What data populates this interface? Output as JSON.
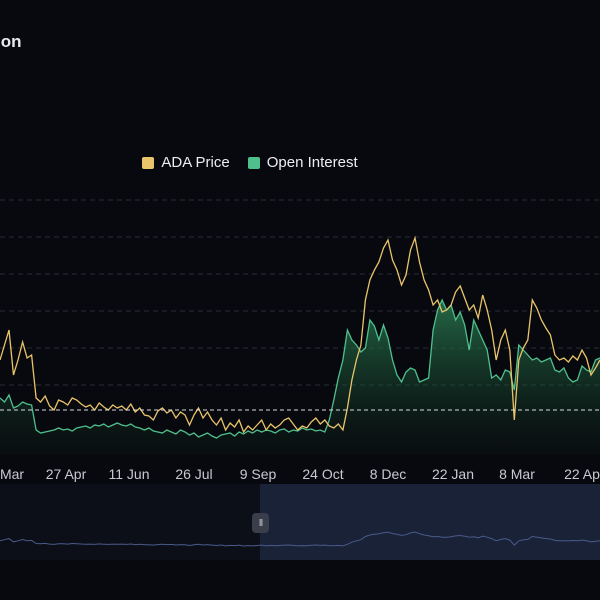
{
  "header": {
    "title": "ion"
  },
  "chart_data": {
    "type": "line",
    "title": "ion",
    "legend_position": "top-center",
    "series": [
      {
        "name": "ADA Price",
        "color": "#e9c46a",
        "values": [
          360,
          345,
          330,
          375,
          360,
          342,
          358,
          355,
          398,
          402,
          396,
          406,
          410,
          400,
          402,
          405,
          398,
          400,
          404,
          407,
          405,
          410,
          403,
          407,
          410,
          405,
          408,
          406,
          410,
          404,
          412,
          408,
          415,
          416,
          420,
          411,
          408,
          413,
          410,
          418,
          412,
          415,
          425,
          415,
          408,
          418,
          412,
          420,
          425,
          418,
          430,
          423,
          427,
          420,
          432,
          426,
          430,
          425,
          420,
          430,
          424,
          428,
          425,
          420,
          418,
          424,
          430,
          426,
          428,
          422,
          418,
          424,
          420,
          426,
          428,
          424,
          430,
          408,
          380,
          360,
          345,
          300,
          280,
          270,
          262,
          248,
          240,
          260,
          270,
          285,
          275,
          250,
          238,
          262,
          280,
          290,
          305,
          300,
          312,
          310,
          305,
          292,
          286,
          298,
          310,
          305,
          318,
          295,
          310,
          330,
          360,
          340,
          330,
          350,
          420,
          360,
          348,
          340,
          300,
          308,
          320,
          328,
          335,
          355,
          360,
          358,
          362,
          356,
          360,
          350,
          358,
          375,
          368,
          360
        ]
      },
      {
        "name": "Open Interest",
        "color": "#4fc08d",
        "values": [
          398,
          402,
          395,
          408,
          406,
          402,
          404,
          405,
          430,
          433,
          432,
          431,
          430,
          428,
          430,
          429,
          431,
          428,
          427,
          426,
          428,
          425,
          426,
          424,
          427,
          425,
          423,
          425,
          426,
          424,
          427,
          428,
          430,
          428,
          431,
          432,
          433,
          430,
          432,
          434,
          430,
          432,
          435,
          433,
          437,
          435,
          433,
          436,
          438,
          435,
          434,
          433,
          436,
          432,
          434,
          431,
          433,
          430,
          432,
          430,
          431,
          433,
          430,
          429,
          432,
          430,
          431,
          428,
          430,
          429,
          431,
          430,
          432,
          420,
          400,
          378,
          360,
          330,
          340,
          345,
          352,
          348,
          320,
          326,
          340,
          325,
          338,
          360,
          375,
          382,
          372,
          368,
          370,
          382,
          380,
          378,
          330,
          310,
          300,
          310,
          305,
          320,
          312,
          325,
          350,
          320,
          330,
          340,
          350,
          378,
          375,
          380,
          370,
          372,
          390,
          345,
          350,
          355,
          360,
          358,
          362,
          360,
          358,
          370,
          372,
          368,
          378,
          382,
          380,
          366,
          370,
          372,
          360,
          358
        ]
      }
    ],
    "x_tick_labels": [
      "Mar",
      "27 Apr",
      "11 Jun",
      "26 Jul",
      "9 Sep",
      "24 Oct",
      "8 Dec",
      "22 Jan",
      "8 Mar",
      "22 Ap"
    ],
    "grid": true,
    "navigator": {
      "handle_icon": "pause-icon",
      "handle_text": "II"
    }
  }
}
